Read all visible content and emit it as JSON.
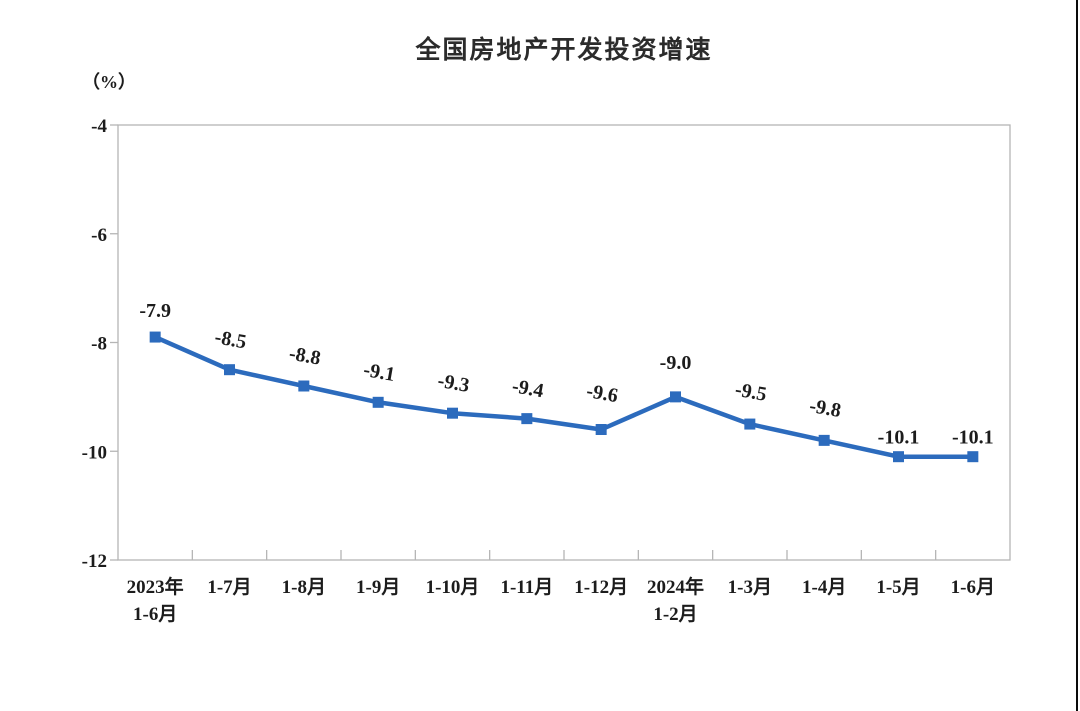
{
  "page": {
    "title": "全国房地产开发投资增速",
    "unit_label": "（%）"
  },
  "chart_data": {
    "type": "line",
    "title": "全国房地产开发投资增速",
    "ylabel": "（%）",
    "xlabel": "",
    "categories": [
      [
        "2023年",
        "1-6月"
      ],
      [
        "1-7月"
      ],
      [
        "1-8月"
      ],
      [
        "1-9月"
      ],
      [
        "1-10月"
      ],
      [
        "1-11月"
      ],
      [
        "1-12月"
      ],
      [
        "2024年",
        "1-2月"
      ],
      [
        "1-3月"
      ],
      [
        "1-4月"
      ],
      [
        "1-5月"
      ],
      [
        "1-6月"
      ]
    ],
    "values": [
      -7.9,
      -8.5,
      -8.8,
      -9.1,
      -9.3,
      -9.4,
      -9.6,
      -9.0,
      -9.5,
      -9.8,
      -10.1,
      -10.1
    ],
    "data_labels": [
      "-7.9",
      "-8.5",
      "-8.8",
      "-9.1",
      "-9.3",
      "-9.4",
      "-9.6",
      "-9.0",
      "-9.5",
      "-9.8",
      "-10.1",
      "-10.1"
    ],
    "ylim": [
      -12,
      -4
    ],
    "yticks": [
      -4,
      -6,
      -8,
      -10,
      -12
    ],
    "grid": false,
    "legend": null,
    "marker": "square",
    "colors": {
      "line": "#2c6bbd",
      "axis": "#b5b5b5",
      "text": "#1c1c1c"
    }
  }
}
